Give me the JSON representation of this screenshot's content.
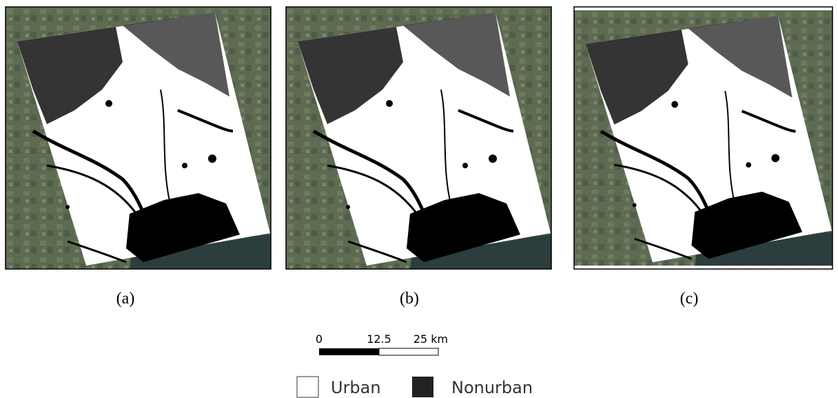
{
  "panels": [
    {
      "label": "(a)"
    },
    {
      "label": "(b)"
    },
    {
      "label": "(c)"
    }
  ],
  "scale_bar": {
    "labels": [
      "0",
      "12.5",
      "25 km"
    ]
  },
  "legend": {
    "items": [
      "Urban",
      "Nonurban"
    ]
  }
}
